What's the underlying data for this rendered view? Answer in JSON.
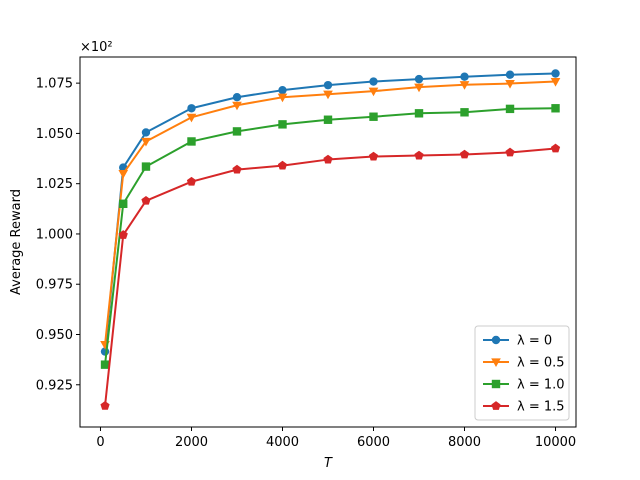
{
  "chart_data": {
    "type": "line",
    "xlabel": "T",
    "ylabel": "Average Reward",
    "y_multiplier_label": "×10²",
    "xlim": [
      -450,
      10450
    ],
    "ylim": [
      0.904,
      1.088
    ],
    "xticks": [
      0,
      2000,
      4000,
      6000,
      8000,
      10000
    ],
    "xtick_labels": [
      "0",
      "2000",
      "4000",
      "6000",
      "8000",
      "10000"
    ],
    "yticks": [
      0.925,
      0.95,
      0.975,
      1.0,
      1.025,
      1.05,
      1.075
    ],
    "ytick_labels": [
      "0.925",
      "0.950",
      "0.975",
      "1.000",
      "1.025",
      "1.050",
      "1.075"
    ],
    "grid": false,
    "legend_position": "bottom-right",
    "x": [
      100,
      500,
      1000,
      2000,
      3000,
      4000,
      5000,
      6000,
      7000,
      8000,
      9000,
      10000
    ],
    "series": [
      {
        "name": "λ = 0",
        "color": "#1f77b4",
        "marker": "circle",
        "values": [
          0.9415,
          1.033,
          1.0505,
          1.0625,
          1.068,
          1.0715,
          1.074,
          1.0758,
          1.077,
          1.0782,
          1.0792,
          1.0798
        ]
      },
      {
        "name": "λ = 0.5",
        "color": "#ff7f0e",
        "marker": "triangle-down",
        "values": [
          0.945,
          1.03,
          1.046,
          1.058,
          1.064,
          1.068,
          1.0695,
          1.071,
          1.073,
          1.0742,
          1.0748,
          1.0758
        ]
      },
      {
        "name": "λ = 1.0",
        "color": "#2ca02c",
        "marker": "square",
        "values": [
          0.935,
          1.015,
          1.0335,
          1.046,
          1.051,
          1.0545,
          1.0568,
          1.0583,
          1.06,
          1.0605,
          1.0622,
          1.0625
        ]
      },
      {
        "name": "λ = 1.5",
        "color": "#d62728",
        "marker": "pentagon",
        "values": [
          0.9145,
          0.9995,
          1.0165,
          1.026,
          1.032,
          1.034,
          1.037,
          1.0385,
          1.039,
          1.0395,
          1.0405,
          1.0425
        ]
      }
    ]
  }
}
